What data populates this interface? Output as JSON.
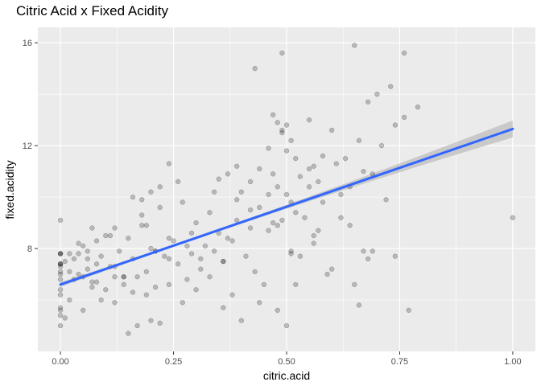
{
  "chart_data": {
    "type": "scatter",
    "title": "Citric Acid x Fixed Acidity",
    "xlabel": "citric.acid",
    "ylabel": "fixed.acidity",
    "xlim": [
      -0.05,
      1.05
    ],
    "ylim": [
      4.0,
      16.6
    ],
    "x_ticks": [
      0.0,
      0.25,
      0.5,
      0.75,
      1.0
    ],
    "x_tick_labels": [
      "0.00",
      "0.25",
      "0.50",
      "0.75",
      "1.00"
    ],
    "y_ticks": [
      8,
      12,
      16
    ],
    "y_tick_labels": [
      "8",
      "12",
      "16"
    ],
    "grid": true,
    "point_color": "#000000",
    "point_opacity": 0.22,
    "fit_line": {
      "method": "linear",
      "intercept": 6.6,
      "slope": 6.05,
      "color": "#3366ff",
      "band_color": "#bdbdbd"
    },
    "points": [
      [
        0.0,
        7.4
      ],
      [
        0.0,
        7.8
      ],
      [
        0.04,
        7.8
      ],
      [
        0.56,
        11.2
      ],
      [
        0.0,
        7.4
      ],
      [
        0.0,
        7.4
      ],
      [
        0.06,
        7.9
      ],
      [
        0.0,
        7.3
      ],
      [
        0.02,
        7.8
      ],
      [
        0.36,
        7.5
      ],
      [
        0.08,
        6.7
      ],
      [
        0.36,
        7.5
      ],
      [
        0.0,
        5.6
      ],
      [
        0.29,
        7.8
      ],
      [
        0.18,
        8.9
      ],
      [
        0.19,
        8.9
      ],
      [
        0.56,
        8.5
      ],
      [
        0.28,
        8.1
      ],
      [
        0.08,
        7.4
      ],
      [
        0.51,
        7.9
      ],
      [
        0.48,
        8.9
      ],
      [
        0.31,
        7.6
      ],
      [
        0.21,
        7.9
      ],
      [
        0.11,
        8.5
      ],
      [
        0.14,
        6.9
      ],
      [
        0.16,
        6.3
      ],
      [
        0.24,
        7.6
      ],
      [
        0.21,
        7.9
      ],
      [
        0.0,
        7.1
      ],
      [
        0.0,
        7.8
      ],
      [
        0.07,
        6.7
      ],
      [
        0.12,
        6.9
      ],
      [
        0.25,
        8.3
      ],
      [
        0.14,
        6.9
      ],
      [
        0.2,
        5.2
      ],
      [
        0.0,
        7.8
      ],
      [
        0.51,
        7.8
      ],
      [
        0.05,
        8.1
      ],
      [
        0.0,
        5.7
      ],
      [
        0.12,
        7.3
      ],
      [
        0.5,
        12.8
      ],
      [
        0.49,
        12.6
      ],
      [
        0.52,
        11.5
      ],
      [
        0.47,
        13.2
      ],
      [
        0.49,
        12.5
      ],
      [
        0.46,
        11.9
      ],
      [
        0.55,
        13.0
      ],
      [
        0.51,
        12.2
      ],
      [
        0.5,
        11.8
      ],
      [
        0.48,
        12.9
      ],
      [
        0.68,
        13.7
      ],
      [
        0.7,
        14.0
      ],
      [
        0.73,
        14.3
      ],
      [
        0.64,
        10.4
      ],
      [
        0.76,
        13.1
      ],
      [
        0.6,
        12.6
      ],
      [
        0.65,
        15.9
      ],
      [
        0.49,
        15.6
      ],
      [
        0.43,
        15.0
      ],
      [
        0.76,
        15.6
      ],
      [
        0.79,
        13.5
      ],
      [
        0.66,
        12.2
      ],
      [
        0.63,
        11.5
      ],
      [
        0.71,
        12.0
      ],
      [
        0.58,
        11.6
      ],
      [
        0.74,
        12.8
      ],
      [
        0.69,
        10.9
      ],
      [
        0.62,
        10.1
      ],
      [
        0.67,
        11.0
      ],
      [
        0.72,
        9.9
      ],
      [
        0.64,
        8.9
      ],
      [
        0.67,
        7.9
      ],
      [
        0.68,
        7.6
      ],
      [
        0.66,
        5.8
      ],
      [
        0.6,
        7.2
      ],
      [
        0.54,
        9.2
      ],
      [
        0.57,
        8.7
      ],
      [
        0.53,
        7.7
      ],
      [
        0.55,
        10.4
      ],
      [
        0.58,
        9.8
      ],
      [
        0.46,
        10.1
      ],
      [
        0.44,
        9.6
      ],
      [
        0.42,
        8.8
      ],
      [
        0.4,
        10.2
      ],
      [
        0.39,
        9.1
      ],
      [
        0.38,
        8.3
      ],
      [
        0.41,
        7.7
      ],
      [
        0.45,
        6.6
      ],
      [
        0.43,
        7.1
      ],
      [
        0.47,
        9.0
      ],
      [
        0.35,
        8.6
      ],
      [
        0.33,
        9.4
      ],
      [
        0.34,
        7.9
      ],
      [
        0.32,
        8.1
      ],
      [
        0.3,
        9.0
      ],
      [
        0.31,
        7.2
      ],
      [
        0.29,
        8.6
      ],
      [
        0.27,
        9.8
      ],
      [
        0.26,
        7.4
      ],
      [
        0.28,
        6.8
      ],
      [
        0.24,
        8.4
      ],
      [
        0.23,
        7.7
      ],
      [
        0.22,
        9.6
      ],
      [
        0.21,
        6.5
      ],
      [
        0.2,
        8.0
      ],
      [
        0.19,
        7.1
      ],
      [
        0.18,
        9.3
      ],
      [
        0.17,
        6.9
      ],
      [
        0.16,
        7.6
      ],
      [
        0.15,
        8.4
      ],
      [
        0.14,
        6.6
      ],
      [
        0.13,
        7.9
      ],
      [
        0.12,
        8.8
      ],
      [
        0.11,
        7.3
      ],
      [
        0.1,
        6.4
      ],
      [
        0.09,
        7.7
      ],
      [
        0.08,
        8.3
      ],
      [
        0.07,
        6.5
      ],
      [
        0.06,
        7.2
      ],
      [
        0.05,
        6.9
      ],
      [
        0.04,
        7.0
      ],
      [
        0.03,
        6.8
      ],
      [
        0.02,
        7.1
      ],
      [
        0.01,
        7.5
      ],
      [
        0.0,
        6.8
      ],
      [
        0.0,
        6.4
      ],
      [
        0.0,
        7.0
      ],
      [
        0.0,
        9.1
      ],
      [
        0.0,
        5.4
      ],
      [
        0.0,
        6.2
      ],
      [
        0.0,
        5.0
      ],
      [
        0.01,
        5.3
      ],
      [
        0.02,
        6.0
      ],
      [
        0.03,
        7.6
      ],
      [
        0.04,
        8.2
      ],
      [
        0.05,
        5.6
      ],
      [
        0.06,
        7.6
      ],
      [
        0.07,
        8.8
      ],
      [
        0.09,
        6.0
      ],
      [
        0.1,
        8.5
      ],
      [
        0.12,
        5.9
      ],
      [
        0.15,
        4.7
      ],
      [
        0.17,
        5.0
      ],
      [
        0.19,
        6.2
      ],
      [
        0.22,
        5.1
      ],
      [
        0.24,
        6.6
      ],
      [
        0.27,
        5.9
      ],
      [
        0.3,
        6.4
      ],
      [
        0.33,
        6.9
      ],
      [
        0.36,
        5.7
      ],
      [
        0.38,
        6.2
      ],
      [
        0.4,
        5.2
      ],
      [
        0.44,
        5.9
      ],
      [
        0.48,
        5.6
      ],
      [
        0.5,
        5.0
      ],
      [
        0.52,
        6.6
      ],
      [
        0.56,
        8.2
      ],
      [
        0.59,
        7.0
      ],
      [
        0.62,
        9.2
      ],
      [
        0.65,
        6.6
      ],
      [
        0.69,
        7.9
      ],
      [
        0.74,
        7.7
      ],
      [
        0.77,
        5.6
      ],
      [
        1.0,
        9.2
      ],
      [
        0.35,
        10.7
      ],
      [
        0.37,
        10.9
      ],
      [
        0.39,
        11.2
      ],
      [
        0.42,
        10.6
      ],
      [
        0.44,
        11.1
      ],
      [
        0.47,
        10.9
      ],
      [
        0.48,
        10.4
      ],
      [
        0.5,
        10.1
      ],
      [
        0.51,
        9.8
      ],
      [
        0.52,
        9.4
      ],
      [
        0.49,
        9.1
      ],
      [
        0.46,
        8.7
      ],
      [
        0.42,
        9.5
      ],
      [
        0.39,
        9.9
      ],
      [
        0.37,
        8.4
      ],
      [
        0.34,
        10.2
      ],
      [
        0.26,
        10.6
      ],
      [
        0.24,
        11.3
      ],
      [
        0.2,
        10.2
      ],
      [
        0.18,
        9.9
      ],
      [
        0.16,
        10.0
      ],
      [
        0.22,
        10.4
      ],
      [
        0.53,
        10.8
      ],
      [
        0.55,
        11.1
      ],
      [
        0.57,
        10.6
      ],
      [
        0.61,
        11.3
      ]
    ]
  }
}
